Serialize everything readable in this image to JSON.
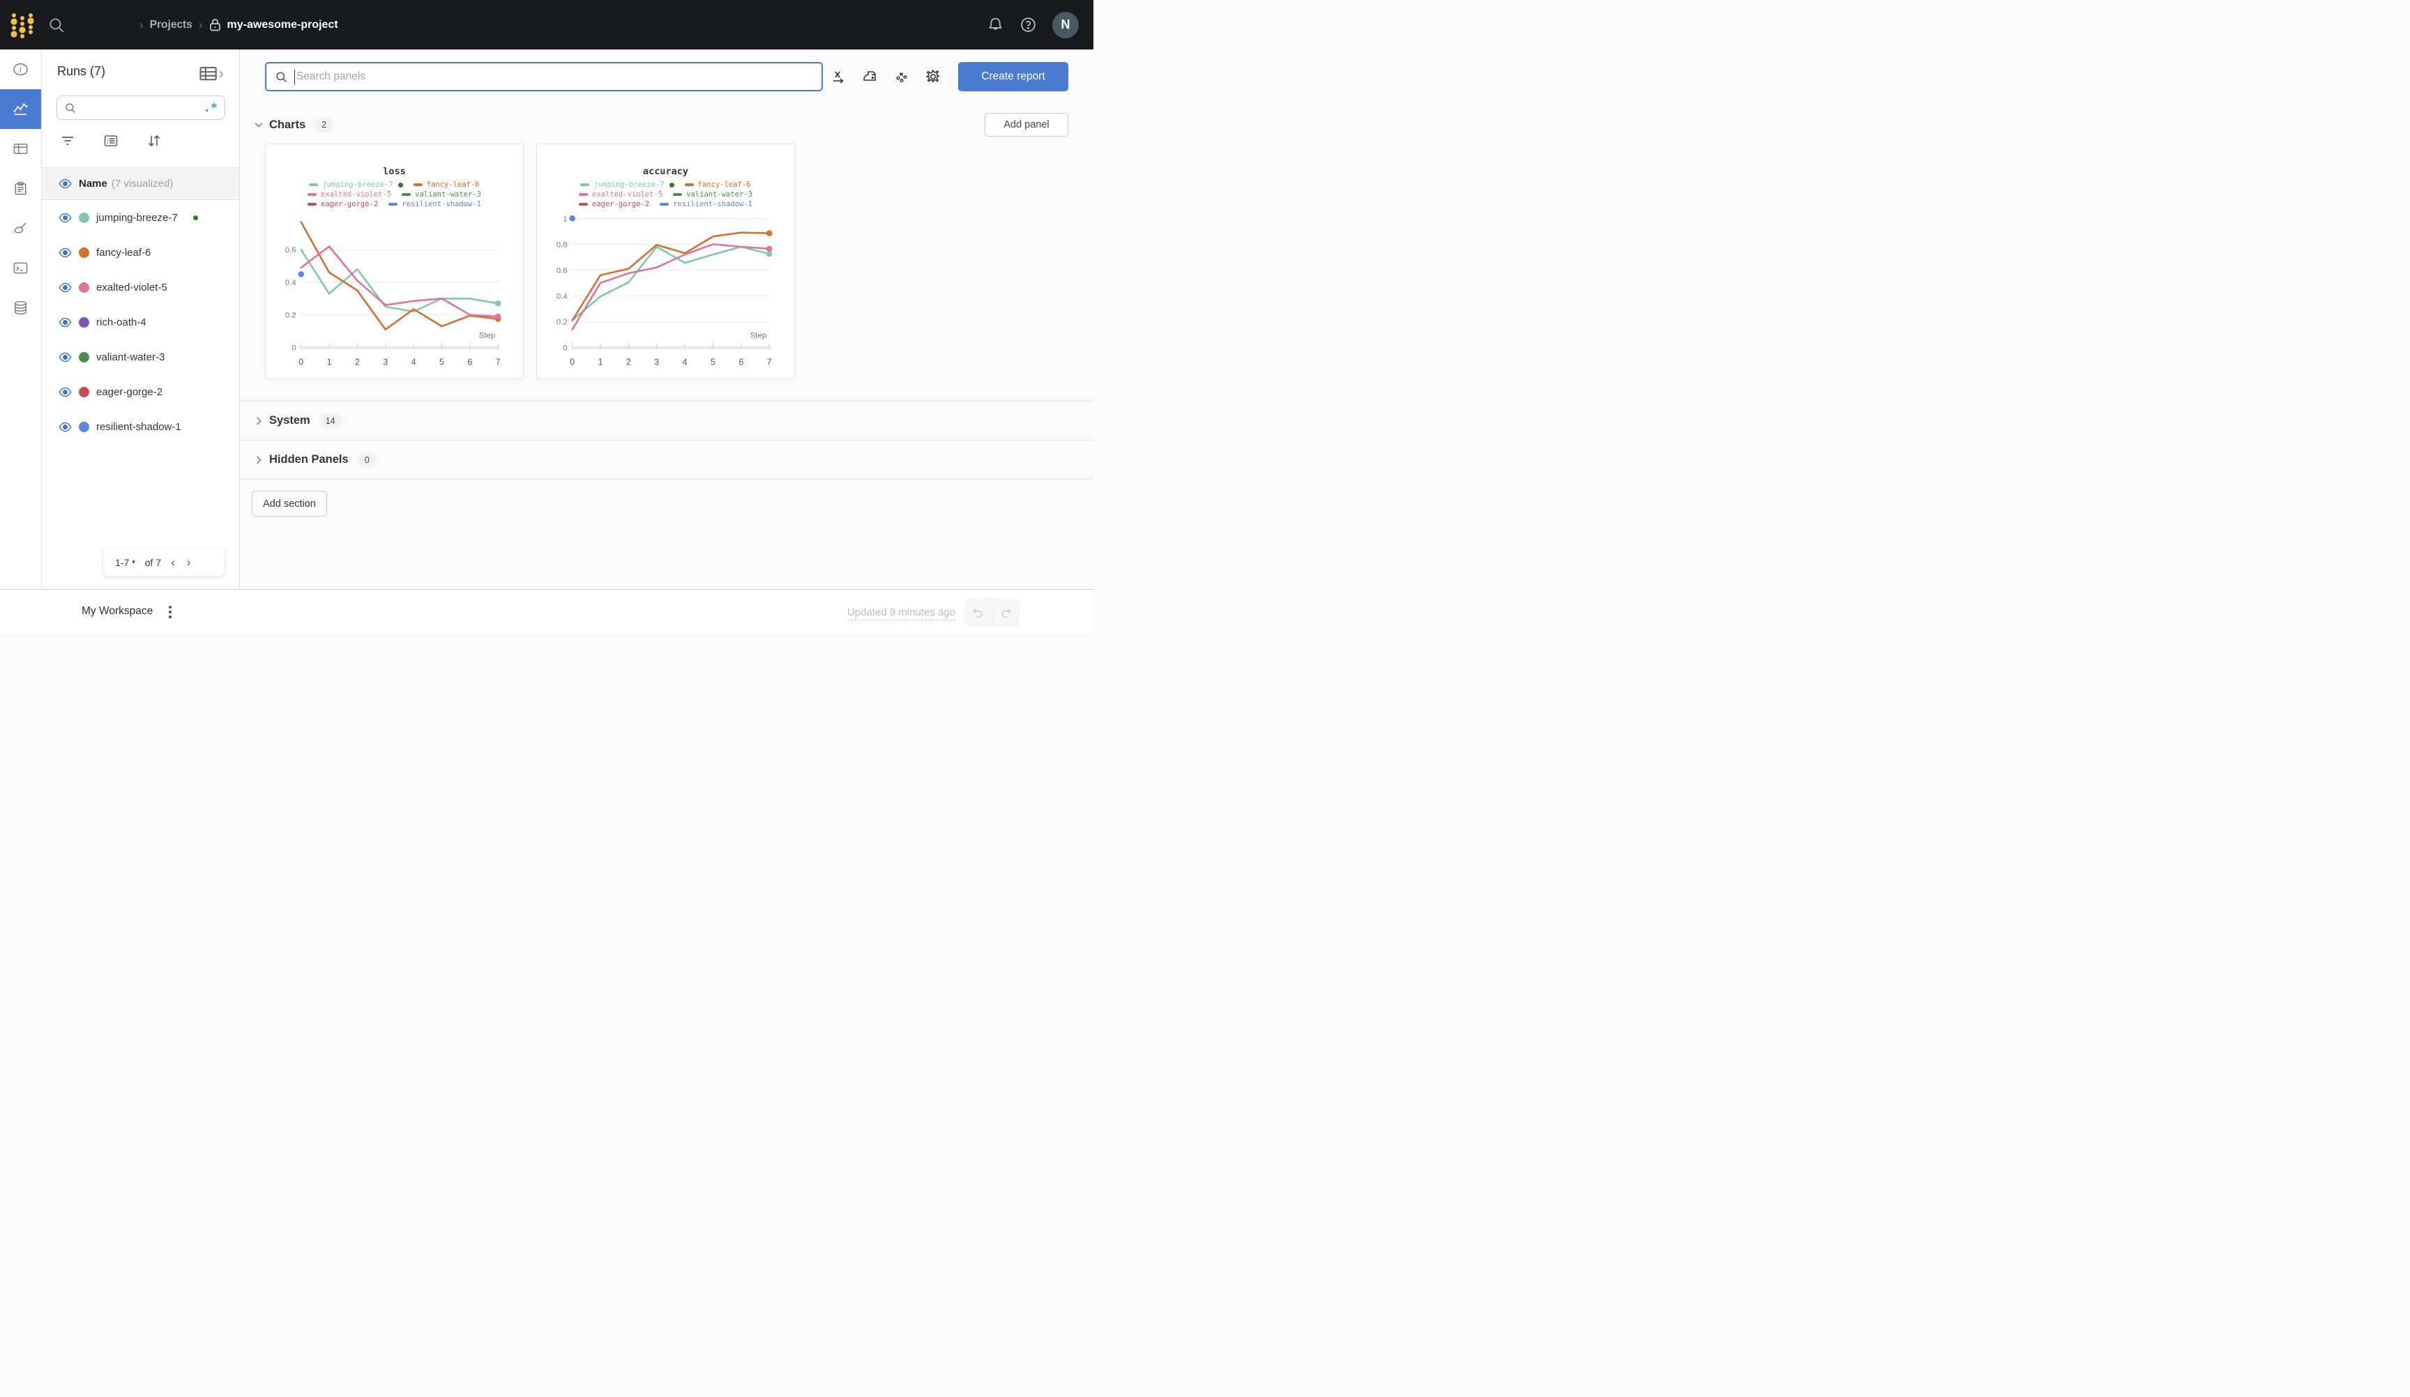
{
  "accent": "#4b7cd1",
  "topbar": {
    "breadcrumb": {
      "section": "Projects",
      "separator": "›",
      "project": "my-awesome-project"
    },
    "avatar_initial": "N"
  },
  "rail": {
    "items": [
      {
        "id": "overview",
        "icon": "info-icon",
        "selected": false
      },
      {
        "id": "workspace",
        "icon": "chart-icon",
        "selected": true
      },
      {
        "id": "table",
        "icon": "table-icon",
        "selected": false
      },
      {
        "id": "reports",
        "icon": "clipboard-icon",
        "selected": false
      },
      {
        "id": "sweeps",
        "icon": "broom-icon",
        "selected": false
      },
      {
        "id": "logs",
        "icon": "terminal-icon",
        "selected": false
      },
      {
        "id": "artifacts",
        "icon": "database-icon",
        "selected": false
      }
    ]
  },
  "runs_panel": {
    "title": "Runs (7)",
    "search_value": "",
    "regex_label": ".*",
    "header": {
      "name": "Name",
      "visualized": "(7 visualized)"
    },
    "runs": [
      {
        "name": "jumping-breeze-7",
        "color": "#7fc8af",
        "running": true
      },
      {
        "name": "fancy-leaf-6",
        "color": "#d4702f",
        "running": false
      },
      {
        "name": "exalted-violet-5",
        "color": "#dd74a0",
        "running": false
      },
      {
        "name": "rich-oath-4",
        "color": "#7d55b5",
        "running": false
      },
      {
        "name": "valiant-water-3",
        "color": "#4e8c52",
        "running": false
      },
      {
        "name": "eager-gorge-2",
        "color": "#c94f4f",
        "running": false
      },
      {
        "name": "resilient-shadow-1",
        "color": "#5a87d9",
        "running": false
      }
    ],
    "pagination": {
      "range": "1-7",
      "of": "of 7",
      "prev": "‹",
      "next": "›",
      "caret": "▾"
    }
  },
  "main": {
    "panel_search": {
      "placeholder": "Search panels"
    },
    "create_report_label": "Create report",
    "add_panel_label": "Add panel",
    "add_section_label": "Add section",
    "sections": [
      {
        "label": "Charts",
        "count": "2"
      },
      {
        "label": "System",
        "count": "14"
      },
      {
        "label": "Hidden Panels",
        "count": "0"
      }
    ]
  },
  "footer": {
    "workspace_label": "My Workspace",
    "updated_label": "Updated 9 minutes ago"
  },
  "chart_data": [
    {
      "type": "line",
      "title": "loss",
      "xlabel": "Step",
      "x": [
        0,
        1,
        2,
        3,
        4,
        5,
        6,
        7
      ],
      "ylim": [
        0,
        0.8
      ],
      "yticks": [
        0,
        0.2,
        0.4,
        0.6
      ],
      "grid": true,
      "legend_position": "top",
      "series": [
        {
          "name": "jumping-breeze-7",
          "color": "#7fc8af",
          "running": true,
          "values": [
            0.6,
            0.33,
            0.48,
            0.25,
            0.22,
            0.3,
            0.3,
            0.27
          ],
          "end_dot": true
        },
        {
          "name": "fancy-leaf-6",
          "color": "#d4702f",
          "values": [
            0.77,
            0.46,
            0.35,
            0.11,
            0.235,
            0.13,
            0.195,
            0.175
          ],
          "end_dot": true
        },
        {
          "name": "exalted-violet-5",
          "color": "#dd74a0",
          "values": [
            0.49,
            0.62,
            0.41,
            0.26,
            0.285,
            0.3,
            0.2,
            0.19
          ],
          "end_dot": true
        },
        {
          "name": "valiant-water-3",
          "color": "#4e8c52",
          "values": []
        },
        {
          "name": "eager-gorge-2",
          "color": "#c94f4f",
          "values": []
        },
        {
          "name": "resilient-shadow-1",
          "color": "#5a87d9",
          "values": [],
          "point": [
            0,
            0.45
          ]
        }
      ]
    },
    {
      "type": "line",
      "title": "accuracy",
      "xlabel": "Step",
      "x": [
        0,
        1,
        2,
        3,
        4,
        5,
        6,
        7
      ],
      "ylim": [
        0,
        1.01
      ],
      "yticks": [
        0,
        0.2,
        0.4,
        0.6,
        0.8,
        1
      ],
      "grid": true,
      "legend_position": "top",
      "series": [
        {
          "name": "jumping-breeze-7",
          "color": "#7fc8af",
          "running": true,
          "values": [
            0.21,
            0.395,
            0.505,
            0.78,
            0.655,
            0.72,
            0.78,
            0.725
          ],
          "end_dot": true
        },
        {
          "name": "fancy-leaf-6",
          "color": "#d4702f",
          "values": [
            0.21,
            0.56,
            0.61,
            0.795,
            0.73,
            0.86,
            0.89,
            0.885
          ],
          "end_dot": true
        },
        {
          "name": "exalted-violet-5",
          "color": "#dd74a0",
          "values": [
            0.14,
            0.5,
            0.575,
            0.62,
            0.72,
            0.8,
            0.78,
            0.765
          ],
          "end_dot": true
        },
        {
          "name": "valiant-water-3",
          "color": "#4e8c52",
          "values": []
        },
        {
          "name": "eager-gorge-2",
          "color": "#c94f4f",
          "values": []
        },
        {
          "name": "resilient-shadow-1",
          "color": "#5a87d9",
          "values": [],
          "point": [
            0,
            1.0
          ]
        }
      ]
    }
  ]
}
